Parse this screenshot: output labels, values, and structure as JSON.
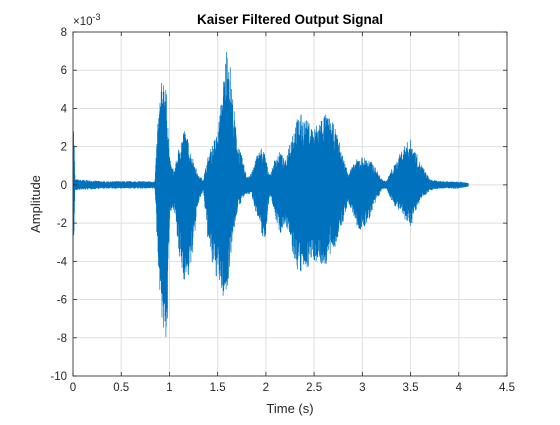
{
  "chart_data": {
    "type": "line",
    "title": "Kaiser Filtered Output Signal",
    "xlabel": "Time (s)",
    "ylabel": "Amplitude",
    "exponent_label": "×10",
    "exponent_power": "-3",
    "xlim": [
      0,
      4.5
    ],
    "ylim": [
      -10,
      8
    ],
    "xticks": [
      0,
      0.5,
      1,
      1.5,
      2,
      2.5,
      3,
      3.5,
      4,
      4.5
    ],
    "xtick_labels": [
      "0",
      "0.5",
      "1",
      "1.5",
      "2",
      "2.5",
      "3",
      "3.5",
      "4",
      "4.5"
    ],
    "yticks": [
      -10,
      -8,
      -6,
      -4,
      -2,
      0,
      2,
      4,
      6,
      8
    ],
    "ytick_labels": [
      "-10",
      "-8",
      "-6",
      "-4",
      "-2",
      "0",
      "2",
      "4",
      "6",
      "8"
    ],
    "grid": true,
    "line_color": "#0072BD",
    "series": [
      {
        "x": [
          0,
          0.01,
          0.02,
          0.3,
          0.6,
          0.85,
          0.88,
          0.92,
          0.95,
          0.98,
          1.0,
          1.02,
          1.05,
          1.1,
          1.15,
          1.18,
          1.22,
          1.3,
          1.35,
          1.4,
          1.45,
          1.5,
          1.55,
          1.6,
          1.62,
          1.65,
          1.7,
          1.75,
          1.8,
          1.85,
          1.9,
          1.95,
          1.98,
          2.0,
          2.02,
          2.05,
          2.1,
          2.15,
          2.2,
          2.25,
          2.3,
          2.35,
          2.4,
          2.45,
          2.5,
          2.55,
          2.6,
          2.65,
          2.7,
          2.75,
          2.8,
          2.85,
          2.9,
          2.95,
          3.0,
          3.05,
          3.1,
          3.15,
          3.2,
          3.25,
          3.3,
          3.35,
          3.4,
          3.45,
          3.5,
          3.55,
          3.6,
          3.7,
          3.8,
          3.9,
          4.0,
          4.1
        ],
        "upper": [
          3.5,
          3.0,
          0.3,
          0.2,
          0.2,
          0.2,
          3.5,
          5.5,
          6.0,
          4.0,
          1.5,
          1.0,
          0.8,
          2.0,
          3.0,
          2.6,
          1.8,
          0.5,
          0.3,
          1.5,
          2.2,
          2.8,
          5.0,
          7.8,
          7.0,
          5.0,
          2.5,
          1.5,
          0.5,
          0.6,
          1.5,
          2.0,
          1.8,
          1.5,
          0.8,
          0.6,
          1.5,
          1.8,
          1.2,
          2.5,
          3.2,
          3.8,
          3.5,
          3.3,
          3.0,
          3.4,
          3.8,
          3.6,
          3.2,
          2.5,
          1.5,
          0.7,
          1.0,
          1.4,
          1.5,
          1.4,
          1.2,
          0.8,
          0.3,
          0.2,
          0.8,
          1.2,
          1.8,
          2.2,
          2.4,
          1.8,
          1.2,
          0.3,
          0.2,
          0.2,
          0.2,
          0.1
        ],
        "lower": [
          -4.5,
          -3.0,
          -0.3,
          -0.2,
          -0.2,
          -0.2,
          -4.0,
          -7.0,
          -8.7,
          -7.5,
          -2.0,
          -1.5,
          -1.2,
          -4.0,
          -5.0,
          -5.2,
          -4.5,
          -1.0,
          -0.3,
          -3.0,
          -4.5,
          -5.0,
          -6.0,
          -5.8,
          -4.5,
          -3.0,
          -1.5,
          -0.8,
          -0.5,
          -0.5,
          -1.5,
          -2.5,
          -3.0,
          -2.8,
          -1.2,
          -0.6,
          -1.8,
          -2.6,
          -2.0,
          -3.0,
          -4.2,
          -4.8,
          -4.6,
          -4.2,
          -4.0,
          -4.1,
          -4.4,
          -4.0,
          -3.5,
          -2.8,
          -2.0,
          -1.0,
          -1.5,
          -2.3,
          -2.5,
          -2.0,
          -1.5,
          -0.8,
          -0.3,
          -0.2,
          -0.8,
          -1.2,
          -1.5,
          -2.0,
          -2.2,
          -1.5,
          -0.8,
          -0.3,
          -0.2,
          -0.2,
          -0.2,
          -0.1
        ]
      }
    ]
  }
}
